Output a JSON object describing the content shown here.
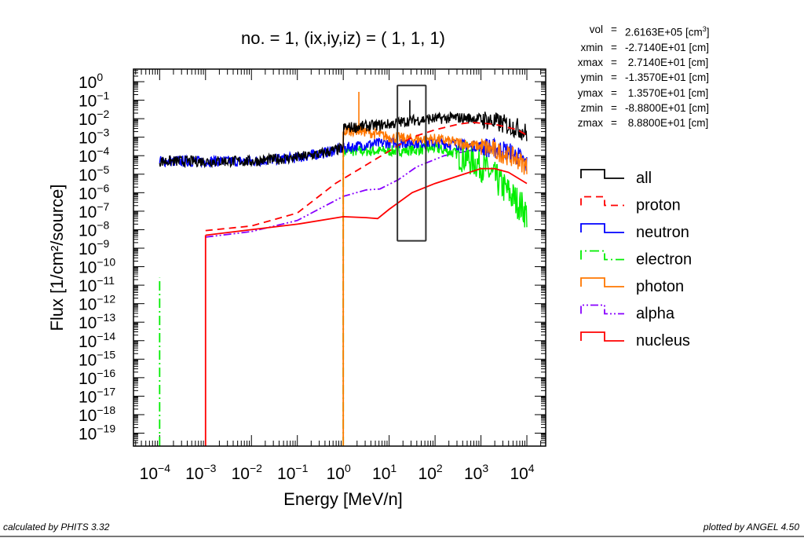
{
  "chart_data": {
    "type": "line",
    "title": "no. =  1, (ix,iy,iz) = (  1,  1,  1)",
    "xlabel": "Energy [MeV/n]",
    "ylabel": "Flux [1/cm²/source]",
    "xscale": "log",
    "yscale": "log",
    "xlim_log10": [
      -4.57,
      4.41
    ],
    "ylim_log10": [
      -19.7,
      0.68
    ],
    "x_tick_exponents": [
      "−4",
      "−3",
      "−2",
      "−1",
      "0",
      "1",
      "2",
      "3",
      "4"
    ],
    "y_tick_exponents": [
      "0",
      "−1",
      "−2",
      "−3",
      "−4",
      "−5",
      "−6",
      "−7",
      "−8",
      "−9",
      "−10",
      "−11",
      "−12",
      "−13",
      "−14",
      "−15",
      "−16",
      "−17",
      "−18",
      "−19"
    ],
    "tick_base": "10",
    "legend_position": "right",
    "series": [
      {
        "name": "all",
        "color": "#000000",
        "style": "solid",
        "noisy": true,
        "log10_x": [
          -4,
          -3,
          -2,
          -1,
          -0.5,
          0,
          0.001,
          0.5,
          1,
          1.45,
          2,
          2.5,
          3,
          3.5,
          3.8,
          4
        ],
        "log10_y": [
          -4.3,
          -4.3,
          -4.3,
          -4.1,
          -3.9,
          -3.6,
          -2.5,
          -2.4,
          -2.3,
          -2.1,
          -2.0,
          -1.95,
          -2.0,
          -2.3,
          -2.5,
          -2.8
        ],
        "spikes": [
          {
            "log10_x": 1.45,
            "log10_y": -1.0
          }
        ]
      },
      {
        "name": "proton",
        "color": "#ff0000",
        "style": "dashed",
        "noisy": false,
        "log10_x": [
          -3,
          -2,
          -1,
          -0.17,
          0.5,
          1,
          1.5,
          2,
          2.5,
          2.8,
          3.3,
          3.8,
          4
        ],
        "log10_y": [
          -8.05,
          -7.8,
          -7.1,
          -5.5,
          -4.5,
          -3.75,
          -3.0,
          -2.6,
          -2.3,
          -2.2,
          -2.3,
          -2.6,
          -2.9
        ]
      },
      {
        "name": "neutron",
        "color": "#0000ff",
        "style": "solid",
        "noisy": true,
        "log10_x": [
          -4,
          -3,
          -2,
          -1,
          -0.5,
          0,
          0.5,
          1,
          2,
          3,
          3.5,
          3.8,
          4
        ],
        "log10_y": [
          -4.3,
          -4.3,
          -4.3,
          -4.1,
          -3.9,
          -3.6,
          -3.4,
          -3.3,
          -3.3,
          -3.5,
          -3.7,
          -4.0,
          -4.5
        ]
      },
      {
        "name": "electron",
        "color": "#00ee00",
        "style": "dashdot",
        "noisy": true,
        "log10_x": [
          0,
          0.5,
          1,
          1.5,
          2,
          2.5,
          3,
          3.3,
          3.6,
          3.9,
          4
        ],
        "log10_y": [
          -3.75,
          -3.75,
          -3.75,
          -3.7,
          -3.6,
          -3.9,
          -4.5,
          -5.2,
          -6.0,
          -6.8,
          -7.2
        ],
        "verticals": [
          {
            "log10_x": -4,
            "log10_y_top": -10.6
          },
          {
            "log10_x": 0,
            "log10_y_top": -3.75
          }
        ]
      },
      {
        "name": "photon",
        "color": "#ff7700",
        "style": "solid",
        "noisy": true,
        "log10_x": [
          0,
          0.3,
          0.5,
          1,
          1.5,
          2,
          2.5,
          3,
          3.5,
          3.8,
          4
        ],
        "log10_y": [
          -2.7,
          -2.6,
          -2.7,
          -3.0,
          -3.1,
          -3.1,
          -3.3,
          -3.5,
          -3.9,
          -4.2,
          -4.6
        ],
        "spikes": [
          {
            "log10_x": 0.34,
            "log10_y": -0.55
          }
        ],
        "verticals": [
          {
            "log10_x": 0,
            "log10_y_top": -2.7
          }
        ]
      },
      {
        "name": "alpha",
        "color": "#8800ff",
        "style": "dashdotdot",
        "noisy": false,
        "log10_x": [
          -3,
          -2,
          -1,
          0,
          0.5,
          0.8,
          1.2,
          1.6,
          2.2,
          3,
          3.5,
          4
        ],
        "log10_y": [
          -8.4,
          -8.1,
          -7.5,
          -6.2,
          -5.85,
          -5.8,
          -5.3,
          -4.6,
          -4.0,
          -3.6,
          -3.8,
          -4.3
        ]
      },
      {
        "name": "nucleus",
        "color": "#ff0000",
        "style": "solid",
        "noisy": false,
        "log10_x": [
          -3,
          -2,
          -1,
          0,
          0.5,
          0.75,
          1.0,
          1.5,
          2,
          2.5,
          3,
          3.3,
          3.6,
          4
        ],
        "log10_y": [
          -8.3,
          -8.0,
          -7.7,
          -7.3,
          -7.35,
          -7.4,
          -6.9,
          -6.0,
          -5.5,
          -5.1,
          -4.7,
          -4.7,
          -4.9,
          -5.5
        ],
        "verticals": [
          {
            "log10_x": -3,
            "log10_y_top": -8.3
          }
        ]
      }
    ],
    "annotation_box": {
      "log10_x": [
        1.18,
        1.8
      ],
      "log10_y": [
        -8.6,
        -0.2
      ],
      "color": "#333333"
    }
  },
  "info": [
    {
      "key": "vol",
      "value": "2.6163E+05 [cm",
      "sup": "3",
      "tail": "]"
    },
    {
      "key": "xmin",
      "value": "-2.7140E+01 [cm]"
    },
    {
      "key": "xmax",
      "value": " 2.7140E+01 [cm]"
    },
    {
      "key": "ymin",
      "value": "-1.3570E+01 [cm]"
    },
    {
      "key": "ymax",
      "value": " 1.3570E+01 [cm]"
    },
    {
      "key": "zmin",
      "value": "-8.8800E+01 [cm]"
    },
    {
      "key": "zmax",
      "value": " 8.8800E+01 [cm]"
    }
  ],
  "info_eq": "=",
  "footer": {
    "left": "calculated by PHITS 3.32",
    "right": "plotted by ANGEL 4.50"
  }
}
